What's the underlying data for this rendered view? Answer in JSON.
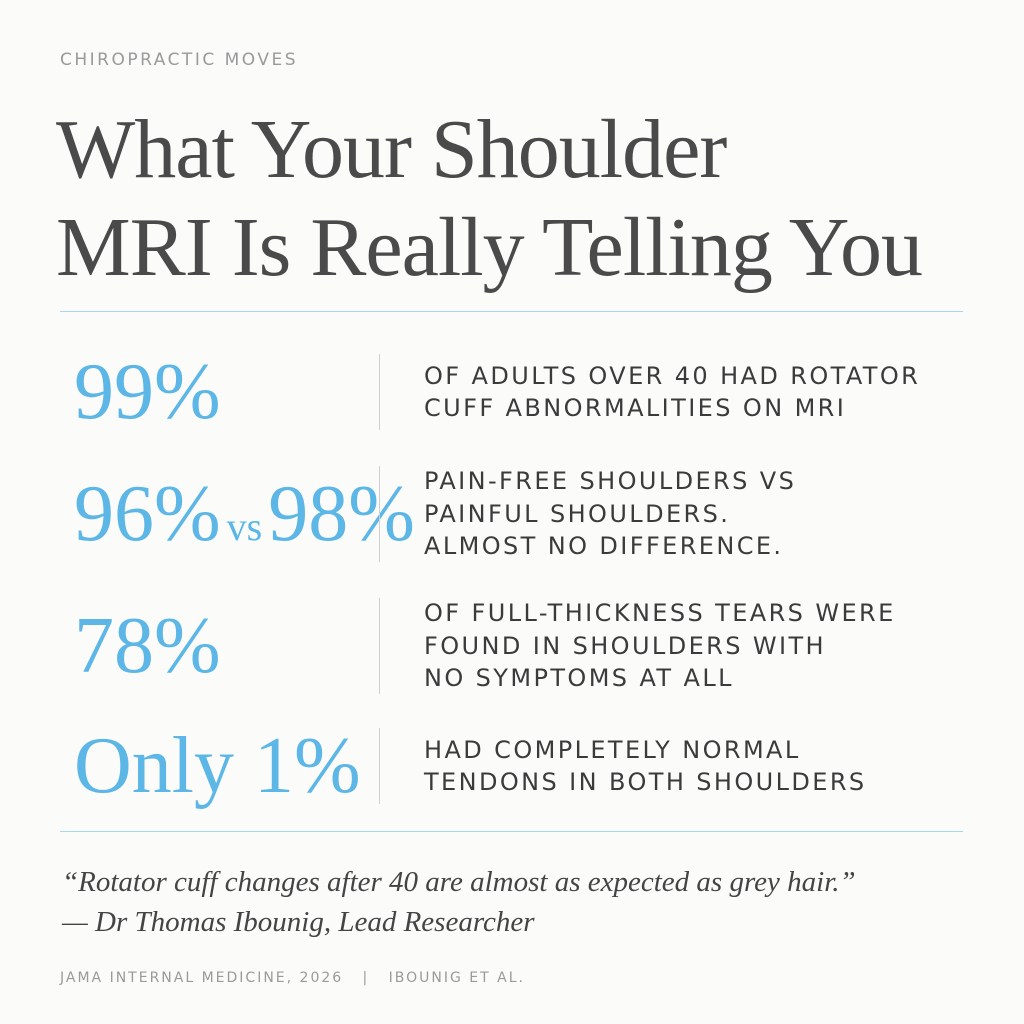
{
  "header": {
    "kicker": "CHIROPRACTIC MOVES",
    "title_lines": [
      "What Your Shoulder",
      "MRI Is Really Telling You"
    ]
  },
  "stats": [
    {
      "figure": [
        "99%"
      ],
      "description": [
        "OF ADULTS OVER 40 HAD ROTATOR",
        "CUFF ABNORMALITIES ON MRI"
      ]
    },
    {
      "figure": [
        "96%",
        "vs",
        "98%"
      ],
      "description": [
        "PAIN-FREE SHOULDERS VS",
        "PAINFUL SHOULDERS.",
        "ALMOST NO DIFFERENCE."
      ]
    },
    {
      "figure": [
        "78%"
      ],
      "description": [
        "OF FULL-THICKNESS TEARS WERE",
        "FOUND IN SHOULDERS WITH",
        "NO SYMPTOMS AT ALL"
      ]
    },
    {
      "figure": [
        "Only 1%"
      ],
      "description": [
        "HAD COMPLETELY NORMAL",
        "TENDONS IN BOTH SHOULDERS"
      ]
    }
  ],
  "quote": {
    "text": "“Rotator cuff changes after 40 are almost as expected as grey hair.”",
    "attribution": "— Dr Thomas Ibounig, Lead Researcher"
  },
  "footer": {
    "source": "JAMA INTERNAL MEDICINE, 2026",
    "separator": "|",
    "authors": "IBOUNIG ET AL."
  }
}
